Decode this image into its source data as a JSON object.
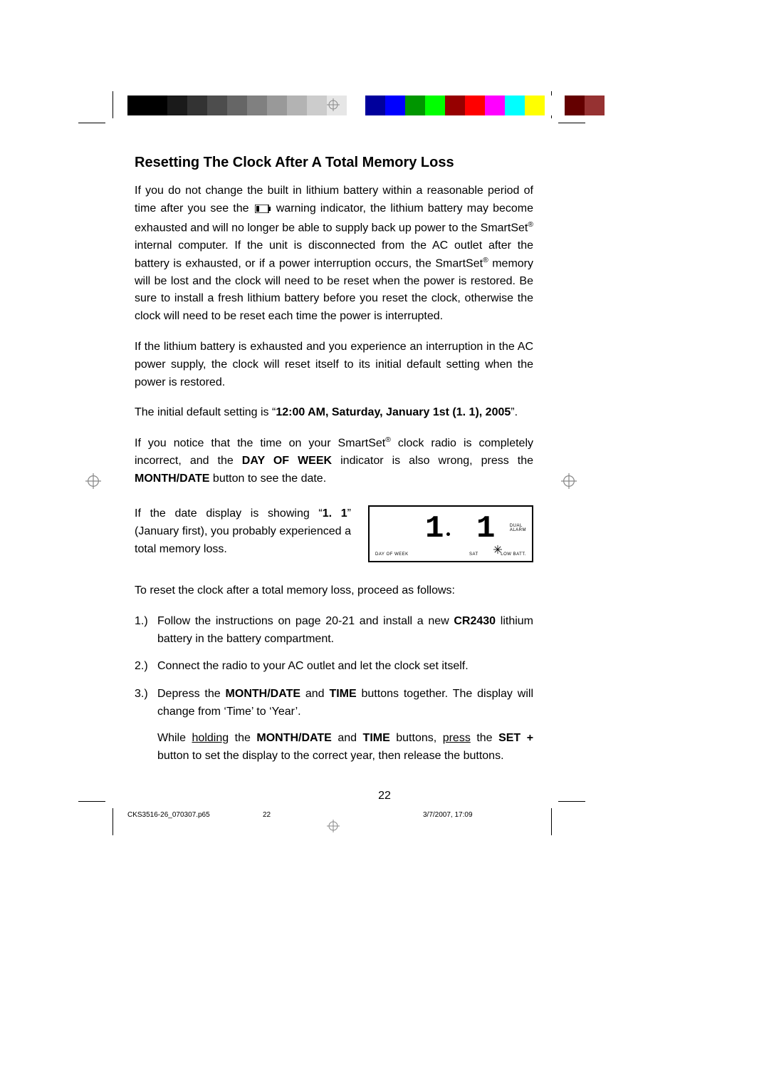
{
  "colors": {
    "grayscale": [
      "#000000",
      "#000000",
      "#1a1a1a",
      "#333333",
      "#4d4d4d",
      "#666666",
      "#808080",
      "#999999",
      "#b3b3b3",
      "#cccccc",
      "#e6e6e6",
      "#ffffff"
    ],
    "process": [
      "#00009c",
      "#0000ff",
      "#009600",
      "#00ff00",
      "#960000",
      "#ff0000",
      "#ff00ff",
      "#00ffff",
      "#ffff00",
      "#ffffff",
      "#640000",
      "#963232"
    ]
  },
  "heading": "Resetting The Clock After A Total Memory Loss",
  "para1_a": "If you do not change the built in lithium battery within a reasonable period of time after you see the ",
  "para1_b": " warning indicator, the lithium battery may become exhausted and will no longer be able to supply back up power to the SmartSet",
  "para1_c": " internal computer. If the unit is disconnected from the AC outlet after the battery is exhausted, or if a power interruption occurs, the SmartSet",
  "para1_d": " memory will be lost and the clock will need to be reset when the power is restored. Be sure to install a fresh lithium battery before you reset the clock, otherwise the clock will need to be reset each time the power is interrupted.",
  "para2": "If the lithium battery is exhausted and you experience an interruption in the AC power supply, the clock will reset itself to its initial default setting when the power is restored.",
  "para3_a": "The initial default setting is “",
  "para3_bold": "12:00 AM, Saturday, January 1st (1. 1), 2005",
  "para3_b": "”.",
  "para4_a": "If you notice that the time on your SmartSet",
  "para4_b": " clock radio is completely incorrect, and the ",
  "para4_day": "DAY OF WEEK",
  "para4_c": " indicator is also wrong, press the ",
  "para4_md": "MONTH/DATE",
  "para4_d": " button to see the date.",
  "para5_a": "If the date display is showing “",
  "para5_bold": "1. 1",
  "para5_b": "” (January first), you probably experienced a total memory loss.",
  "display": {
    "seg_a": "1",
    "seg_b": "1",
    "dual": "DUAL",
    "alarm": "ALARM",
    "dow": "DAY OF WEEK",
    "sat": "SAT",
    "lowbatt": "LOW BATT."
  },
  "para6": "To reset the clock after a total memory loss, proceed as follows:",
  "steps": {
    "s1_num": "1.)",
    "s1_a": "Follow the instructions on page 20-21 and install a new ",
    "s1_bold": "CR2430",
    "s1_b": " lithium battery in the battery compartment.",
    "s2_num": "2.)",
    "s2": "Connect the radio to your AC outlet and let the clock set itself.",
    "s3_num": "3.)",
    "s3_a": "Depress the ",
    "s3_md": "MONTH/DATE",
    "s3_b": " and ",
    "s3_time": "TIME",
    "s3_c": " buttons together. The display will change from ‘Time’ to ‘Year’.",
    "s3sub_a": "While ",
    "s3sub_hold": "holding",
    "s3sub_b": " the ",
    "s3sub_md": "MONTH/DATE",
    "s3sub_c": " and ",
    "s3sub_time": "TIME",
    "s3sub_d": " buttons, ",
    "s3sub_press": "press",
    "s3sub_e": " the ",
    "s3sub_set": "SET +",
    "s3sub_f": " button to set the display to the correct year, then release the buttons."
  },
  "page_number": "22",
  "footer": {
    "filename": "CKS3516-26_070307.p65",
    "page": "22",
    "datetime": "3/7/2007, 17:09"
  }
}
